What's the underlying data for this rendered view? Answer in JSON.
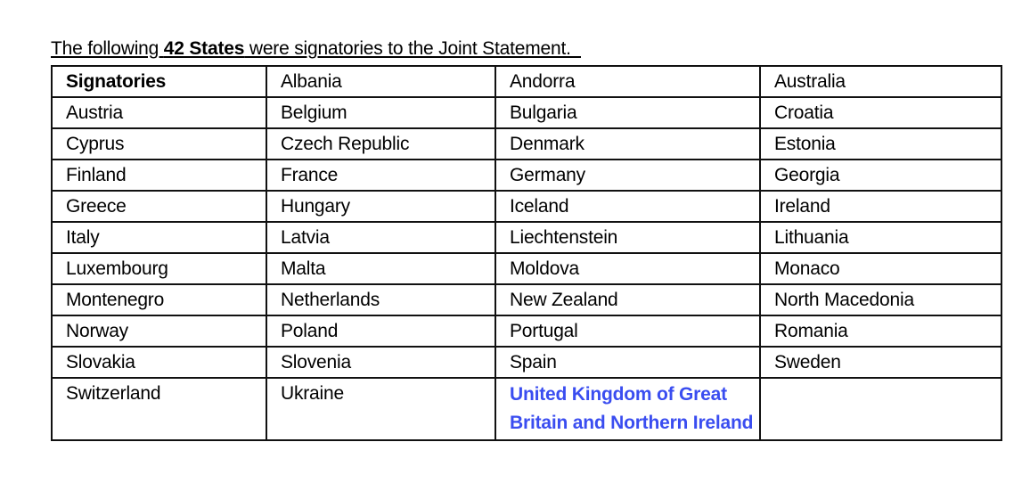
{
  "intro": {
    "prefix": "The following ",
    "bold": "42 States",
    "suffix": " were signatories to the Joint Statement.  "
  },
  "highlight_color": "#3a4df0",
  "table": {
    "header": "Signatories",
    "rows": [
      [
        "Signatories",
        "Albania",
        "Andorra",
        "Australia"
      ],
      [
        "Austria",
        "Belgium",
        "Bulgaria",
        "Croatia"
      ],
      [
        "Cyprus",
        "Czech Republic",
        "Denmark",
        "Estonia"
      ],
      [
        "Finland",
        "France",
        "Germany",
        "Georgia"
      ],
      [
        "Greece",
        "Hungary",
        "Iceland",
        "Ireland"
      ],
      [
        "Italy",
        "Latvia",
        "Liechtenstein",
        "Lithuania"
      ],
      [
        "Luxembourg",
        "Malta",
        "Moldova",
        "Monaco"
      ],
      [
        "Montenegro",
        "Netherlands",
        "New Zealand",
        "North Macedonia"
      ],
      [
        "Norway",
        "Poland",
        "Portugal",
        "Romania"
      ],
      [
        "Slovakia",
        "Slovenia",
        "Spain",
        "Sweden"
      ],
      [
        "Switzerland",
        "Ukraine",
        "United Kingdom of Great Britain and Northern Ireland",
        ""
      ]
    ]
  }
}
